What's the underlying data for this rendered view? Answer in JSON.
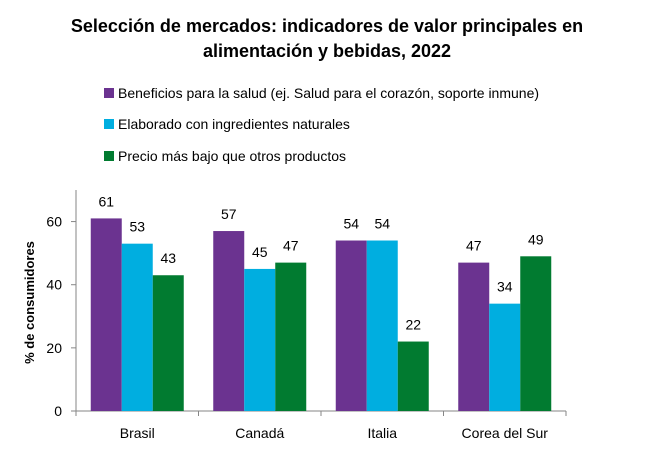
{
  "chart_data": {
    "type": "bar",
    "title_lines": [
      "Selección de mercados: indicadores de valor principales en",
      "alimentación y bebidas, 2022"
    ],
    "categories": [
      "Brasil",
      "Canadá",
      "Italia",
      "Corea del Sur"
    ],
    "series": [
      {
        "name": "Beneficios para la salud (ej. Salud para el corazón, soporte inmune)",
        "color": "#6b3390",
        "values": [
          61,
          57,
          54,
          47
        ]
      },
      {
        "name": "Elaborado con ingredientes naturales",
        "color": "#00aee0",
        "values": [
          53,
          45,
          54,
          34
        ]
      },
      {
        "name": "Precio más bajo que otros productos",
        "color": "#017b30",
        "values": [
          43,
          47,
          22,
          49
        ]
      }
    ],
    "xlabel": "",
    "ylabel": "% de consumidores",
    "ylim": [
      0,
      70
    ],
    "yticks": [
      0,
      20,
      40,
      60
    ],
    "grid": false,
    "legend_position": "top",
    "data_labels": true
  }
}
